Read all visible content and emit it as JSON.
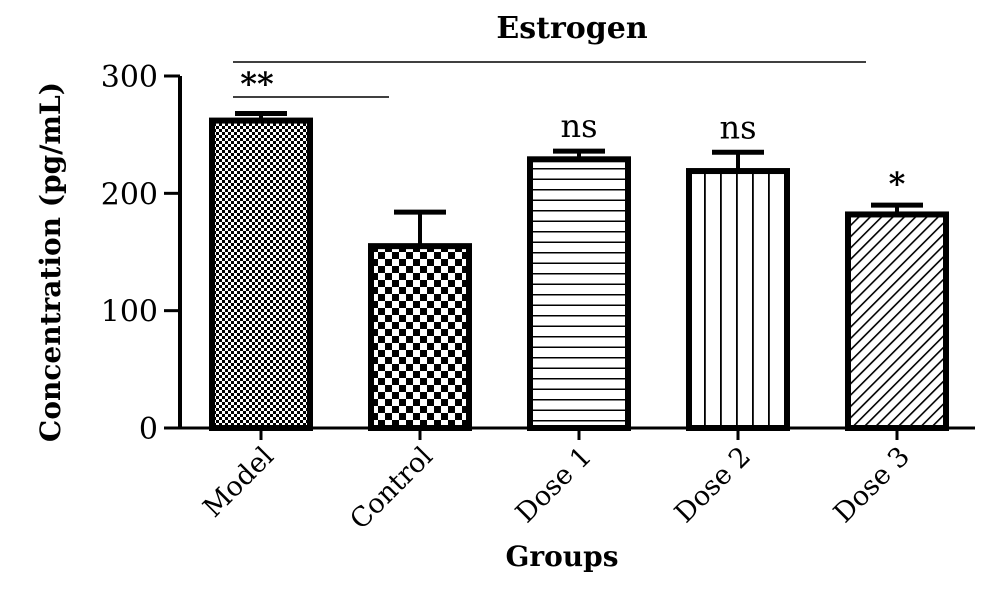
{
  "chart_data": {
    "type": "bar",
    "title": "Estrogen",
    "xlabel": "Groups",
    "ylabel": "Concentration (pg/mL)",
    "ylim": [
      0,
      300
    ],
    "yticks": [
      0,
      100,
      200,
      300
    ],
    "categories": [
      "Model",
      "Control",
      "Dose 1",
      "Dose 2",
      "Dose 3"
    ],
    "values": [
      262,
      155,
      229,
      219,
      182
    ],
    "error_upper": [
      268,
      184,
      236,
      235,
      190
    ],
    "patterns": [
      "fine-check",
      "checker",
      "horizontal",
      "vertical",
      "diagonal"
    ],
    "annotations": [
      "",
      "",
      "ns",
      "ns",
      "*"
    ],
    "brackets": [
      {
        "from": "Model",
        "to": "Control",
        "label": "**"
      },
      {
        "from": "Model",
        "to": "Dose 3",
        "label": ""
      }
    ],
    "grid": false,
    "colors": {
      "ink": "#000000",
      "background": "#ffffff"
    }
  }
}
